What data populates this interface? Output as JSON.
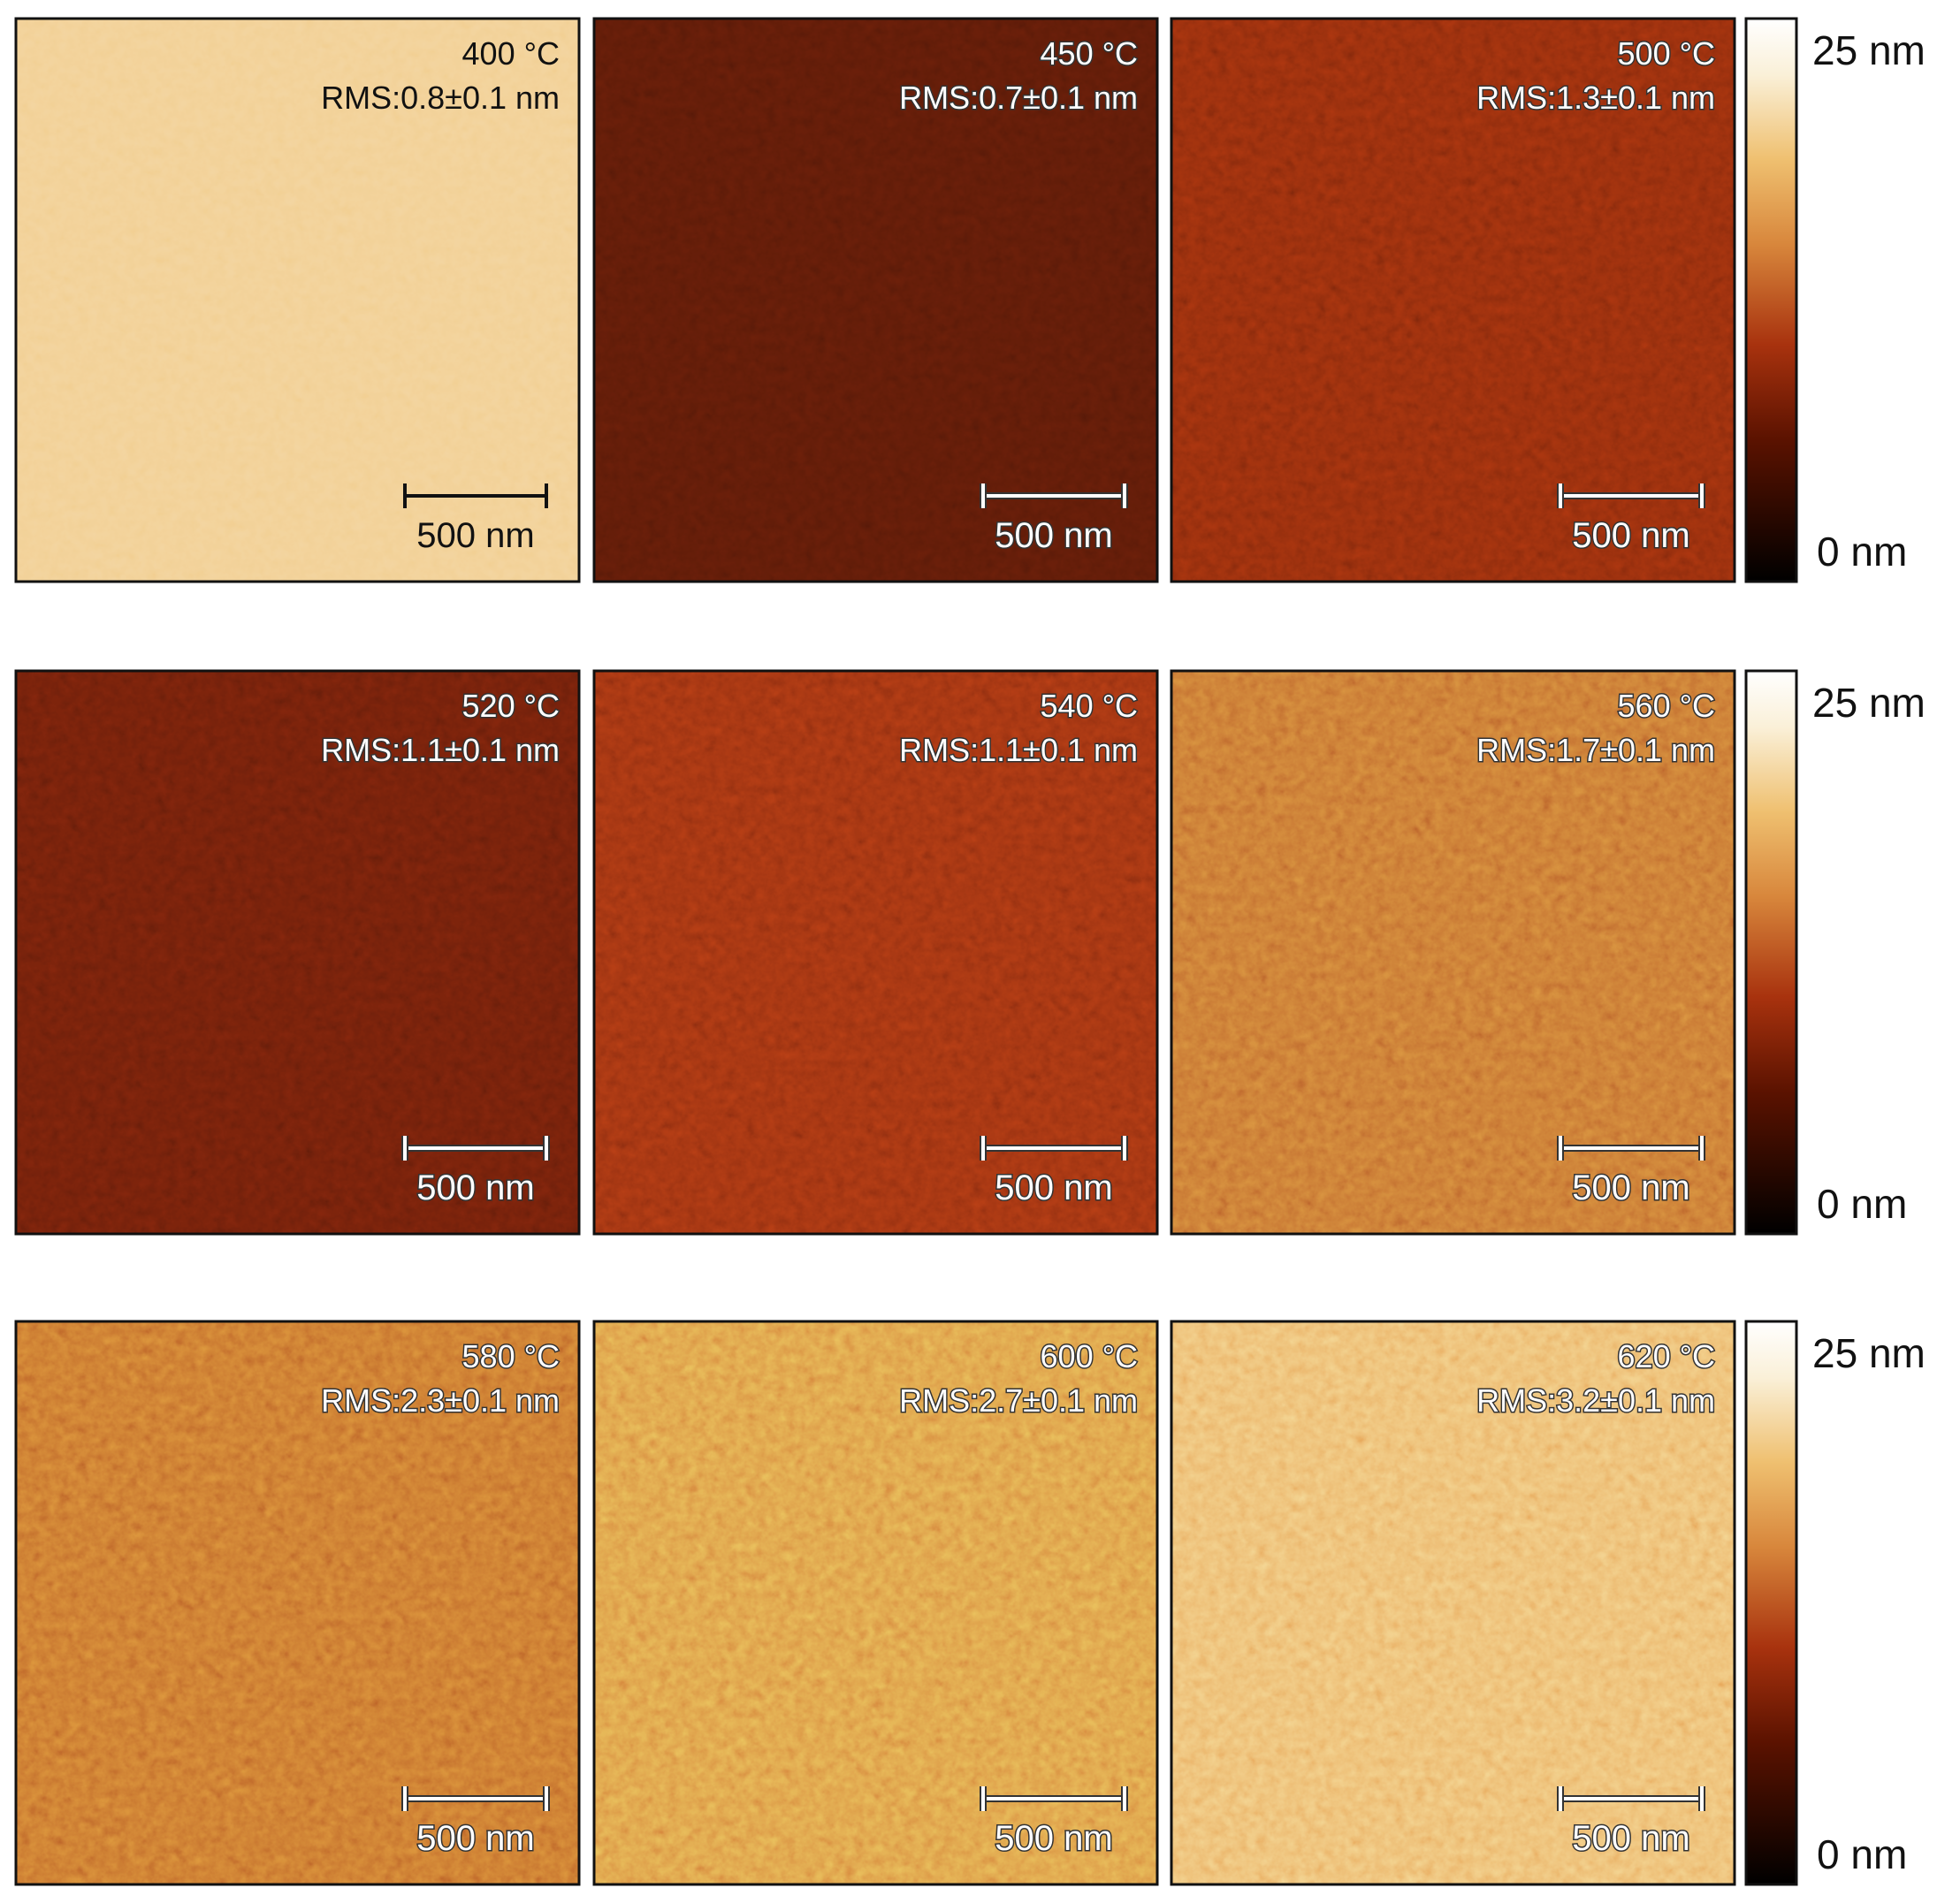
{
  "panels": [
    {
      "temperature": "400 °C",
      "rms": "RMS:0.8±0.1 nm",
      "scale_bar": "500 nm"
    },
    {
      "temperature": "450 °C",
      "rms": "RMS:0.7±0.1 nm",
      "scale_bar": "500 nm"
    },
    {
      "temperature": "500 °C",
      "rms": "RMS:1.3±0.1 nm",
      "scale_bar": "500 nm"
    },
    {
      "temperature": "520 °C",
      "rms": "RMS:1.1±0.1 nm",
      "scale_bar": "500 nm"
    },
    {
      "temperature": "540 °C",
      "rms": "RMS:1.1±0.1 nm",
      "scale_bar": "500 nm"
    },
    {
      "temperature": "560 °C",
      "rms": "RMS:1.7±0.1 nm",
      "scale_bar": "500 nm"
    },
    {
      "temperature": "580 °C",
      "rms": "RMS:2.3±0.1 nm",
      "scale_bar": "500 nm"
    },
    {
      "temperature": "600 °C",
      "rms": "RMS:2.7±0.1 nm",
      "scale_bar": "500 nm"
    },
    {
      "temperature": "620 °C",
      "rms": "RMS:3.2±0.1 nm",
      "scale_bar": "500 nm"
    }
  ],
  "colorbars": [
    {
      "max": "25 nm",
      "min": "0 nm"
    },
    {
      "max": "25 nm",
      "min": "0 nm"
    },
    {
      "max": "25 nm",
      "min": "0 nm"
    }
  ]
}
